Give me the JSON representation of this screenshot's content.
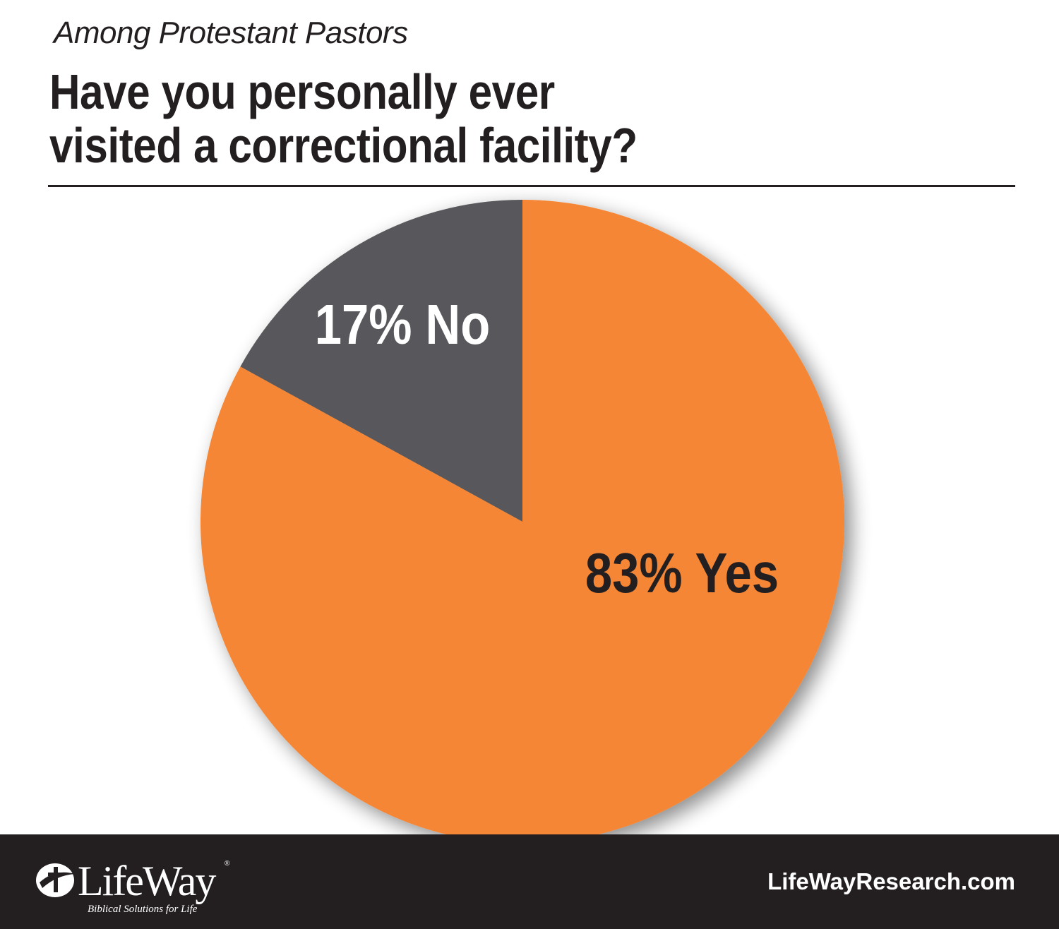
{
  "header": {
    "subtitle": "Among Protestant Pastors",
    "title_line1": "Have you personally ever",
    "title_line2": "visited a correctional facility?"
  },
  "chart_data": {
    "type": "pie",
    "slices": [
      {
        "label": "17% No",
        "category": "No",
        "value": 17,
        "color": "#58595b",
        "label_color": "#ffffff"
      },
      {
        "label": "83% Yes",
        "category": "Yes",
        "value": 83,
        "color": "#f58634",
        "label_color": "#231f20"
      }
    ]
  },
  "footer": {
    "brand": "LifeWay",
    "tagline": "Biblical Solutions for Life",
    "url": "LifeWayResearch.com"
  }
}
